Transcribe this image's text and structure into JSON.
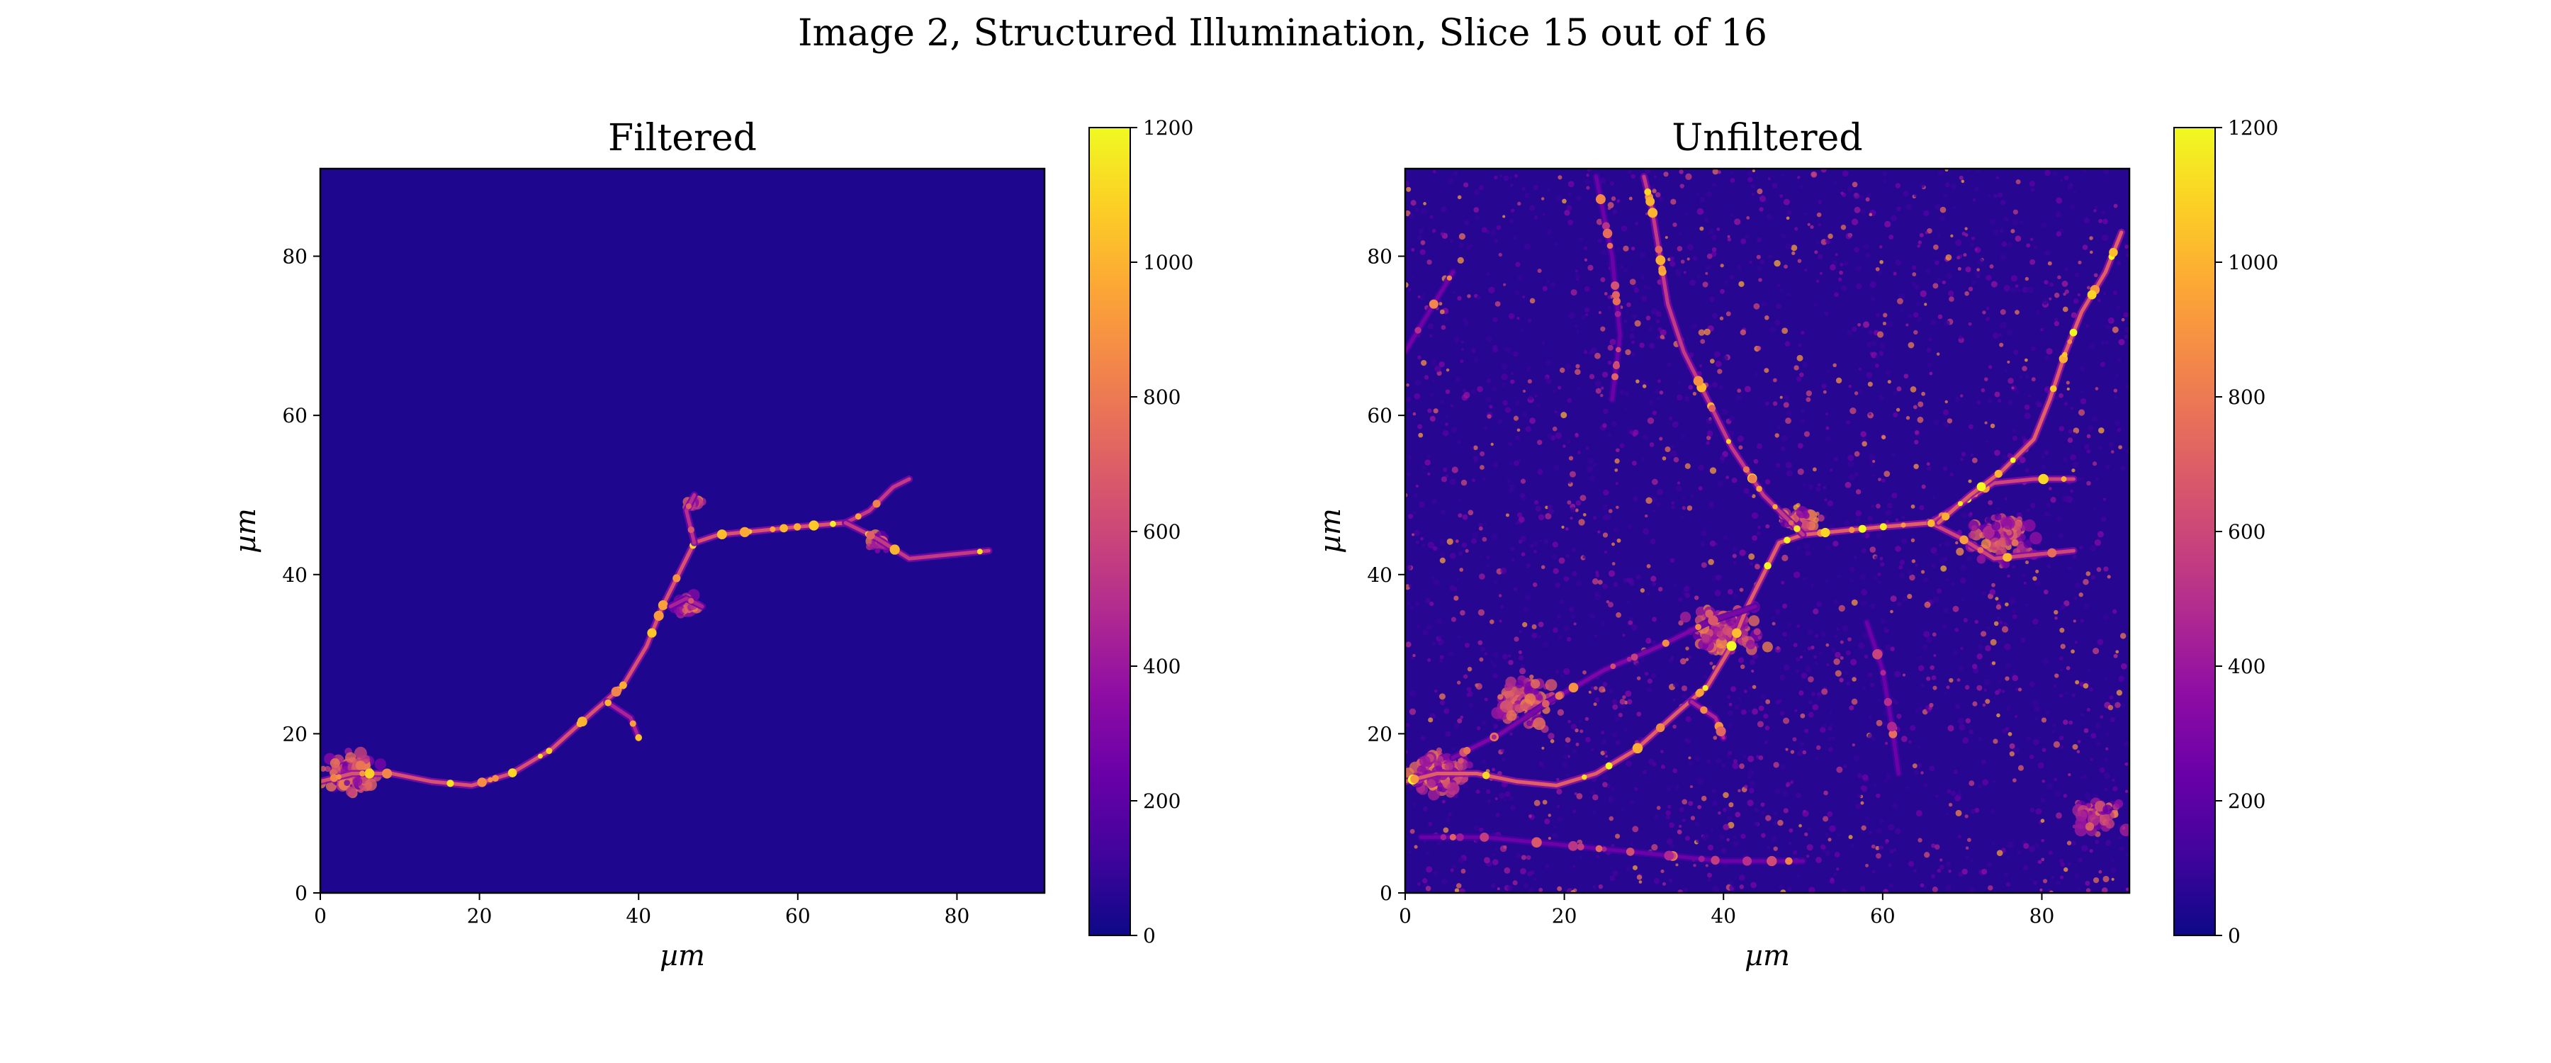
{
  "figure": {
    "suptitle": "Image 2, Structured Illumination, Slice 15 out of 16"
  },
  "colormap": {
    "name": "plasma",
    "stops": [
      "#0d0887",
      "#41049d",
      "#6a00a8",
      "#8f0da4",
      "#b12a90",
      "#cc4778",
      "#e16462",
      "#f2844b",
      "#fca636",
      "#fcce25",
      "#f0f921"
    ]
  },
  "chart_data": [
    {
      "type": "heatmap",
      "title": "Filtered",
      "xlabel": "µm",
      "ylabel": "µm",
      "xlim": [
        0,
        91
      ],
      "ylim": [
        0,
        91
      ],
      "xticks": [
        "0",
        "20",
        "40",
        "60",
        "80"
      ],
      "yticks": [
        "0",
        "20",
        "40",
        "60",
        "80"
      ],
      "colorbar": {
        "range": [
          0,
          1200
        ],
        "ticks": [
          "0",
          "200",
          "400",
          "600",
          "800",
          "1000",
          "1200"
        ]
      },
      "background_value": 40,
      "filaments": [
        {
          "points": [
            [
              0,
              14
            ],
            [
              4,
              15
            ],
            [
              9,
              15
            ],
            [
              14,
              14
            ],
            [
              19,
              13.5
            ],
            [
              24,
              15
            ],
            [
              29,
              18
            ],
            [
              34,
              22.5
            ],
            [
              38,
              26
            ],
            [
              41,
              31
            ],
            [
              43,
              36
            ],
            [
              45,
              40
            ],
            [
              47,
              44
            ],
            [
              50,
              45
            ],
            [
              55,
              45.5
            ],
            [
              60,
              46
            ],
            [
              66,
              46.5
            ]
          ],
          "value": 650
        },
        {
          "points": [
            [
              66,
              46.5
            ],
            [
              69,
              48
            ],
            [
              72,
              51
            ],
            [
              74,
              52
            ]
          ],
          "value": 550
        },
        {
          "points": [
            [
              66,
              46.5
            ],
            [
              70,
              44.5
            ],
            [
              74,
              42
            ],
            [
              79,
              42.5
            ],
            [
              84,
              43
            ]
          ],
          "value": 550
        },
        {
          "points": [
            [
              36,
              24
            ],
            [
              39,
              22
            ],
            [
              40,
              19.5
            ]
          ],
          "value": 450
        },
        {
          "points": [
            [
              47,
              44
            ],
            [
              46,
              48
            ],
            [
              47,
              50
            ]
          ],
          "value": 500
        },
        {
          "points": [
            [
              44,
              36
            ],
            [
              46,
              37
            ],
            [
              48,
              36
            ]
          ],
          "value": 450
        }
      ],
      "clusters": [
        {
          "x": 4,
          "y": 15,
          "spread": 3,
          "count": 110
        },
        {
          "x": 46,
          "y": 36,
          "spread": 1.5,
          "count": 45
        },
        {
          "x": 47,
          "y": 49,
          "spread": 1,
          "count": 18
        },
        {
          "x": 70,
          "y": 44,
          "spread": 1.2,
          "count": 20
        }
      ],
      "noise_count": 0
    },
    {
      "type": "heatmap",
      "title": "Unfiltered",
      "xlabel": "µm",
      "ylabel": "µm",
      "xlim": [
        0,
        91
      ],
      "ylim": [
        0,
        91
      ],
      "xticks": [
        "0",
        "20",
        "40",
        "60",
        "80"
      ],
      "yticks": [
        "0",
        "20",
        "40",
        "60",
        "80"
      ],
      "colorbar": {
        "range": [
          0,
          1200
        ],
        "ticks": [
          "0",
          "200",
          "400",
          "600",
          "800",
          "1000",
          "1200"
        ]
      },
      "background_value": 60,
      "filaments": [
        {
          "points": [
            [
              0,
              14
            ],
            [
              4,
              15
            ],
            [
              9,
              15
            ],
            [
              14,
              14
            ],
            [
              19,
              13.5
            ],
            [
              24,
              15
            ],
            [
              29,
              18
            ],
            [
              34,
              22.5
            ],
            [
              38,
              26
            ],
            [
              41,
              31
            ],
            [
              43,
              36
            ],
            [
              45,
              40
            ],
            [
              47,
              44
            ],
            [
              50,
              45
            ],
            [
              55,
              45.5
            ],
            [
              60,
              46
            ],
            [
              66,
              46.5
            ]
          ],
          "value": 700
        },
        {
          "points": [
            [
              66,
              46.5
            ],
            [
              70,
              49
            ],
            [
              74,
              51.5
            ],
            [
              79,
              52
            ],
            [
              84,
              52
            ]
          ],
          "value": 600
        },
        {
          "points": [
            [
              66,
              46.5
            ],
            [
              70,
              44.5
            ],
            [
              74,
              42
            ],
            [
              79,
              42.5
            ],
            [
              84,
              43
            ]
          ],
          "value": 600
        },
        {
          "points": [
            [
              50,
              45
            ],
            [
              45,
              50
            ],
            [
              41,
              56
            ],
            [
              38,
              62
            ],
            [
              35,
              68
            ],
            [
              33,
              74
            ],
            [
              32,
              80
            ],
            [
              31,
              86
            ],
            [
              30,
              90
            ]
          ],
          "value": 550
        },
        {
          "points": [
            [
              67,
              46.5
            ],
            [
              71,
              50
            ],
            [
              75,
              53
            ],
            [
              79,
              57
            ],
            [
              81,
              62
            ],
            [
              83,
              68
            ],
            [
              85,
              73
            ],
            [
              88,
              78
            ],
            [
              90,
              83
            ]
          ],
          "value": 700
        },
        {
          "points": [
            [
              36,
              24
            ],
            [
              39,
              22
            ],
            [
              40,
              19.5
            ]
          ],
          "value": 450
        },
        {
          "points": [
            [
              44,
              36
            ],
            [
              38,
              34
            ],
            [
              32,
              31
            ],
            [
              25,
              28
            ],
            [
              18,
              24
            ],
            [
              12,
              20
            ],
            [
              6,
              17
            ]
          ],
          "value": 300
        },
        {
          "points": [
            [
              2,
              7
            ],
            [
              10,
              7
            ],
            [
              20,
              6
            ],
            [
              30,
              5
            ],
            [
              40,
              4
            ],
            [
              50,
              4
            ]
          ],
          "value": 250
        },
        {
          "points": [
            [
              58,
              34
            ],
            [
              60,
              28
            ],
            [
              61,
              22
            ],
            [
              62,
              15
            ]
          ],
          "value": 250
        },
        {
          "points": [
            [
              24,
              90
            ],
            [
              26,
              80
            ],
            [
              27,
              70
            ],
            [
              26,
              62
            ]
          ],
          "value": 250
        },
        {
          "points": [
            [
              0,
              68
            ],
            [
              3,
              73
            ],
            [
              6,
              78
            ]
          ],
          "value": 260
        }
      ],
      "clusters": [
        {
          "x": 4,
          "y": 15,
          "spread": 3,
          "count": 180
        },
        {
          "x": 40,
          "y": 33,
          "spread": 4,
          "count": 130
        },
        {
          "x": 15,
          "y": 24,
          "spread": 4,
          "count": 90
        },
        {
          "x": 75,
          "y": 45,
          "spread": 4,
          "count": 90
        },
        {
          "x": 87,
          "y": 10,
          "spread": 3,
          "count": 50
        },
        {
          "x": 50,
          "y": 47,
          "spread": 2,
          "count": 40
        }
      ],
      "noise_count": 2600
    }
  ]
}
